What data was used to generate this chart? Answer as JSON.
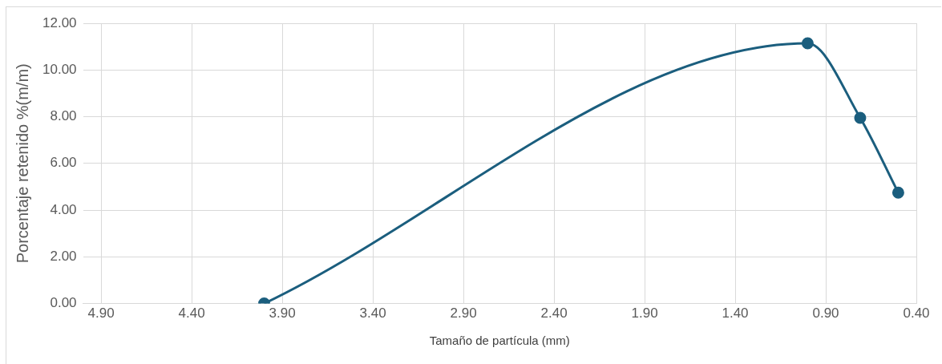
{
  "chart_data": {
    "type": "line",
    "xlabel": "Tamaño de partícula (mm)",
    "ylabel": "Porcentaje retenido %(m/m)",
    "x": [
      4.0,
      1.0,
      0.71,
      0.5
    ],
    "series": [
      {
        "color": "#1b5e7e",
        "values": [
          0,
          11.14,
          7.95,
          4.75
        ]
      }
    ],
    "xlim": [
      5.0,
      0.4
    ],
    "xticks": [
      {
        "value": 4.9,
        "label": "4.90"
      },
      {
        "value": 4.4,
        "label": "4.40"
      },
      {
        "value": 3.9,
        "label": "3.90"
      },
      {
        "value": 3.4,
        "label": "3.40"
      },
      {
        "value": 2.9,
        "label": "2.90"
      },
      {
        "value": 2.4,
        "label": "2.40"
      },
      {
        "value": 1.9,
        "label": "1.90"
      },
      {
        "value": 1.4,
        "label": "1.40"
      },
      {
        "value": 0.9,
        "label": "0.90"
      },
      {
        "value": 0.4,
        "label": "0.40"
      }
    ],
    "ylim": [
      0,
      12
    ],
    "yticks": [
      {
        "value": 0,
        "label": "0.00"
      },
      {
        "value": 2,
        "label": "2.00"
      },
      {
        "value": 4,
        "label": "4.00"
      },
      {
        "value": 6,
        "label": "6.00"
      },
      {
        "value": 8,
        "label": "8.00"
      },
      {
        "value": 10,
        "label": "10.00"
      },
      {
        "value": 12,
        "label": "12.00"
      }
    ],
    "grid": true,
    "marker": "circle",
    "line_style": "solid",
    "legend": false
  }
}
